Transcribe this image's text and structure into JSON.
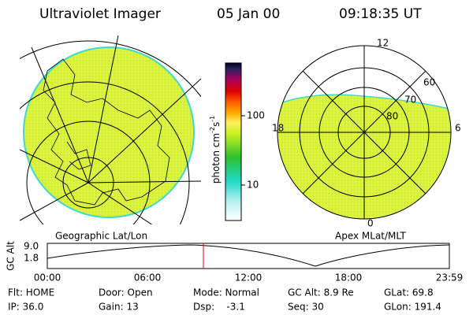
{
  "header": {
    "title": "Ultraviolet Imager",
    "date": "05 Jan 00",
    "time": "09:18:35 UT"
  },
  "colorbar": {
    "ticks": [
      "100",
      "10"
    ],
    "unit": {
      "base": "photon cm",
      "exp1": "-2",
      "mid": "s",
      "exp2": "-1"
    }
  },
  "polar_plot": {
    "mlt_labels": [
      "12",
      "18",
      "6",
      "0"
    ],
    "mlat_labels": [
      "60",
      "70",
      "80"
    ]
  },
  "map_labels": {
    "left": "Geographic Lat/Lon",
    "right": "Apex MLat/MLT"
  },
  "altitude_panel": {
    "label": "GC Alt",
    "ticks": [
      "9.0",
      "1.8"
    ],
    "times": [
      "00:00",
      "06:00",
      "12:00",
      "18:00",
      "23:59"
    ]
  },
  "status": {
    "rows": [
      [
        "Flt: HOME",
        "Door: Open",
        "Mode: Normal",
        "GC Alt: 8.9 Re",
        "GLat: 69.8"
      ],
      [
        "IP: 36.0",
        "Gain: 13",
        "Dsp:    -3.1",
        "Seq: 30",
        "GLon: 191.4"
      ]
    ]
  }
}
